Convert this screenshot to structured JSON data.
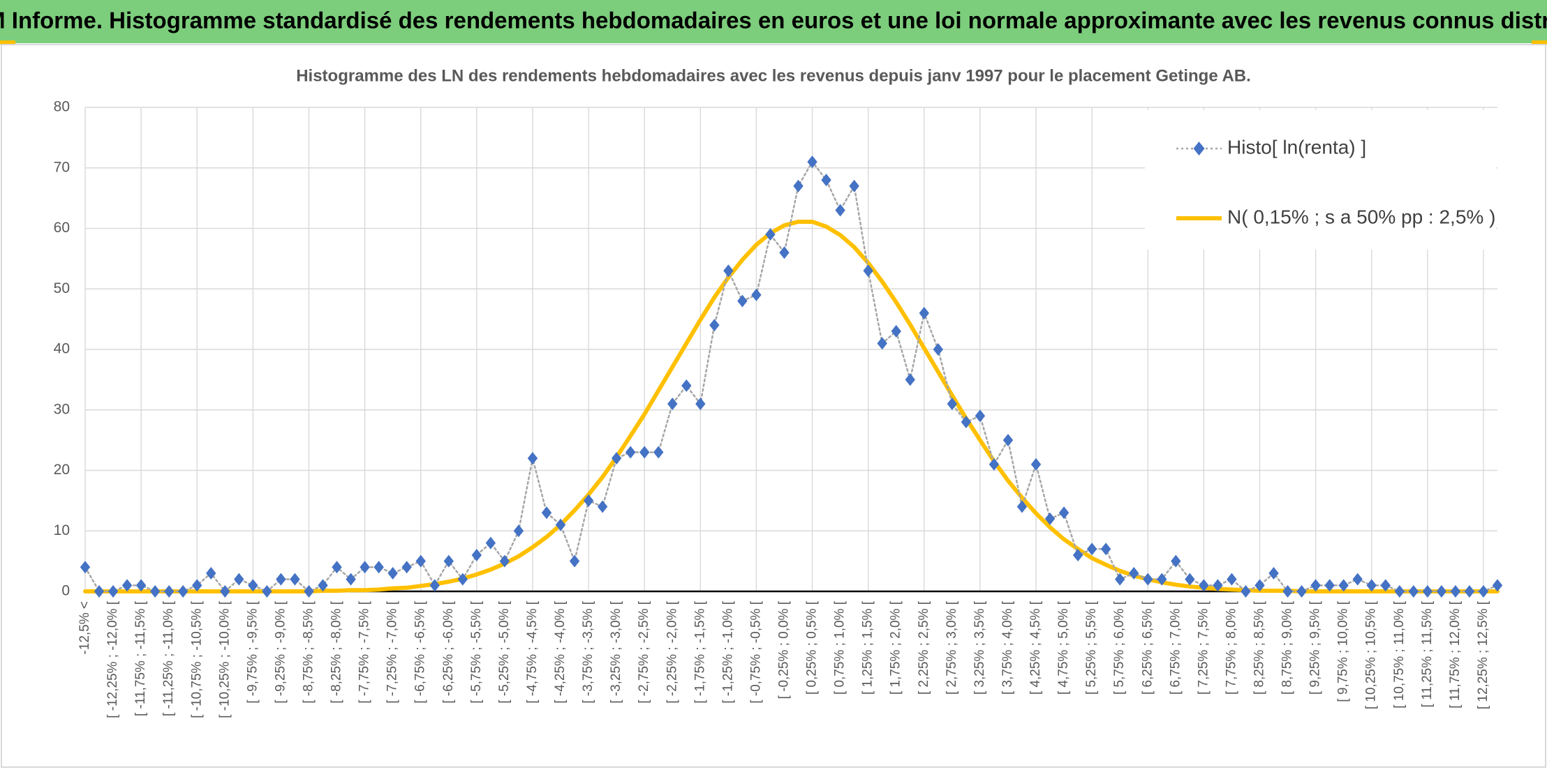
{
  "chart_data": {
    "type": "line",
    "title": "ADAM Informe. Histogramme standardisé des rendements hebdomadaires en euros et une loi normale approximante avec les revenus connus distribués",
    "subtitle": "Histogramme des LN des rendements hebdomadaires avec les revenus depuis janv 1997 pour le placement Getinge AB.",
    "categories": [
      "-12,5% <",
      null,
      "[ -12,25% ; -12,0% [",
      null,
      "[ -11,75% ; -11,5% [",
      null,
      "[ -11,25% ; -11,0% [",
      null,
      "[ -10,75% ; -10,5% [",
      null,
      "[ -10,25% ; -10,0% [",
      null,
      "[ -9,75% ; -9,5% [",
      null,
      "[ -9,25% ; -9,0% [",
      null,
      "[ -8,75% ; -8,5% [",
      null,
      "[ -8,25% ; -8,0% [",
      null,
      "[ -7,75% ; -7,5% [",
      null,
      "[ -7,25% ; -7,0% [",
      null,
      "[ -6,75% ; -6,5% [",
      null,
      "[ -6,25% ; -6,0% [",
      null,
      "[ -5,75% ; -5,5% [",
      null,
      "[ -5,25% ; -5,0% [",
      null,
      "[ -4,75% ; -4,5% [",
      null,
      "[ -4,25% ; -4,0% [",
      null,
      "[ -3,75% ; -3,5% [",
      null,
      "[ -3,25% ; -3,0% [",
      null,
      "[ -2,75% ; -2,5% [",
      null,
      "[ -2,25% ; -2,0% [",
      null,
      "[ -1,75% ; -1,5% [",
      null,
      "[ -1,25% ; -1,0% [",
      null,
      "[ -0,75% ; -0,5% [",
      null,
      "[ -0,25% ; 0,0% [",
      null,
      "[ 0,25% ; 0,5% [",
      null,
      "[ 0,75% ; 1,0% [",
      null,
      "[ 1,25% ; 1,5% [",
      null,
      "[ 1,75% ; 2,0% [",
      null,
      "[ 2,25% ; 2,5% [",
      null,
      "[ 2,75% ; 3,0% [",
      null,
      "[ 3,25% ; 3,5% [",
      null,
      "[ 3,75% ; 4,0% [",
      null,
      "[ 4,25% ; 4,5% [",
      null,
      "[ 4,75% ; 5,0% [",
      null,
      "[ 5,25% ; 5,5% [",
      null,
      "[ 5,75% ; 6,0% [",
      null,
      "[ 6,25% ; 6,5% [",
      null,
      "[ 6,75% ; 7,0% [",
      null,
      "[ 7,25% ; 7,5% [",
      null,
      "[ 7,75% ; 8,0% [",
      null,
      "[ 8,25% ; 8,5% [",
      null,
      "[ 8,75% ; 9,0% [",
      null,
      "[ 9,25% ; 9,5% [",
      null,
      "[ 9,75% ; 10,0% [",
      null,
      "[ 10,25% ; 10,5% [",
      null,
      "[ 10,75% ; 11,0% [",
      null,
      "[ 11,25% ; 11,5% [",
      null,
      "[ 11,75% ; 12,0% [",
      null,
      "[ 12,25% ; 12,5% [",
      null
    ],
    "series": [
      {
        "name": "Histo[ ln(renta) ]",
        "color": "#4472c4",
        "line_color": "#a6a6a6",
        "line_style": "dotted",
        "marker": "diamond",
        "values": [
          4,
          0,
          0,
          1,
          1,
          0,
          0,
          0,
          1,
          3,
          0,
          2,
          1,
          0,
          2,
          2,
          0,
          1,
          4,
          2,
          4,
          4,
          3,
          4,
          5,
          1,
          5,
          2,
          6,
          8,
          5,
          10,
          22,
          13,
          11,
          5,
          15,
          14,
          22,
          23,
          23,
          23,
          31,
          34,
          31,
          44,
          53,
          48,
          49,
          59,
          56,
          67,
          71,
          68,
          63,
          67,
          53,
          41,
          43,
          35,
          46,
          40,
          31,
          28,
          29,
          21,
          25,
          14,
          21,
          12,
          13,
          6,
          7,
          7,
          2,
          3,
          2,
          2,
          5,
          2,
          1,
          1,
          2,
          0,
          1,
          3,
          0,
          0,
          1,
          1,
          1,
          2,
          1,
          1,
          0,
          0,
          0,
          0,
          0,
          0,
          0,
          1
        ]
      },
      {
        "name": "N( 0,15% ; s a 50% pp : 2,5% )",
        "color": "#ffc000",
        "line_style": "solid",
        "values": [
          0,
          0,
          0,
          0,
          0,
          0,
          0,
          0,
          0,
          0,
          0,
          0,
          0,
          0,
          0,
          0,
          0,
          0.1,
          0.1,
          0.2,
          0.2,
          0.3,
          0.5,
          0.6,
          0.9,
          1.2,
          1.6,
          2.1,
          2.8,
          3.6,
          4.6,
          5.8,
          7.3,
          9.0,
          11.0,
          13.4,
          16.0,
          18.9,
          22.2,
          25.7,
          29.3,
          33.2,
          37.1,
          41.0,
          44.9,
          48.6,
          51.9,
          54.8,
          57.3,
          59.2,
          60.5,
          61.1,
          61.1,
          60.3,
          58.9,
          56.9,
          54.3,
          51.2,
          47.8,
          44.1,
          40.2,
          36.3,
          32.4,
          28.6,
          25.0,
          21.5,
          18.3,
          15.5,
          12.9,
          10.6,
          8.6,
          7.0,
          5.5,
          4.4,
          3.4,
          2.6,
          2.0,
          1.5,
          1.1,
          0.8,
          0.6,
          0.4,
          0.3,
          0.2,
          0.1,
          0.1,
          0.1,
          0,
          0,
          0,
          0,
          0,
          0,
          0,
          0,
          0,
          0,
          0,
          0,
          0,
          0,
          0
        ]
      }
    ],
    "ylim": [
      0,
      80
    ],
    "yticks": [
      0,
      10,
      20,
      30,
      40,
      50,
      60,
      70,
      80
    ],
    "grid": true,
    "legend": "top-right"
  }
}
